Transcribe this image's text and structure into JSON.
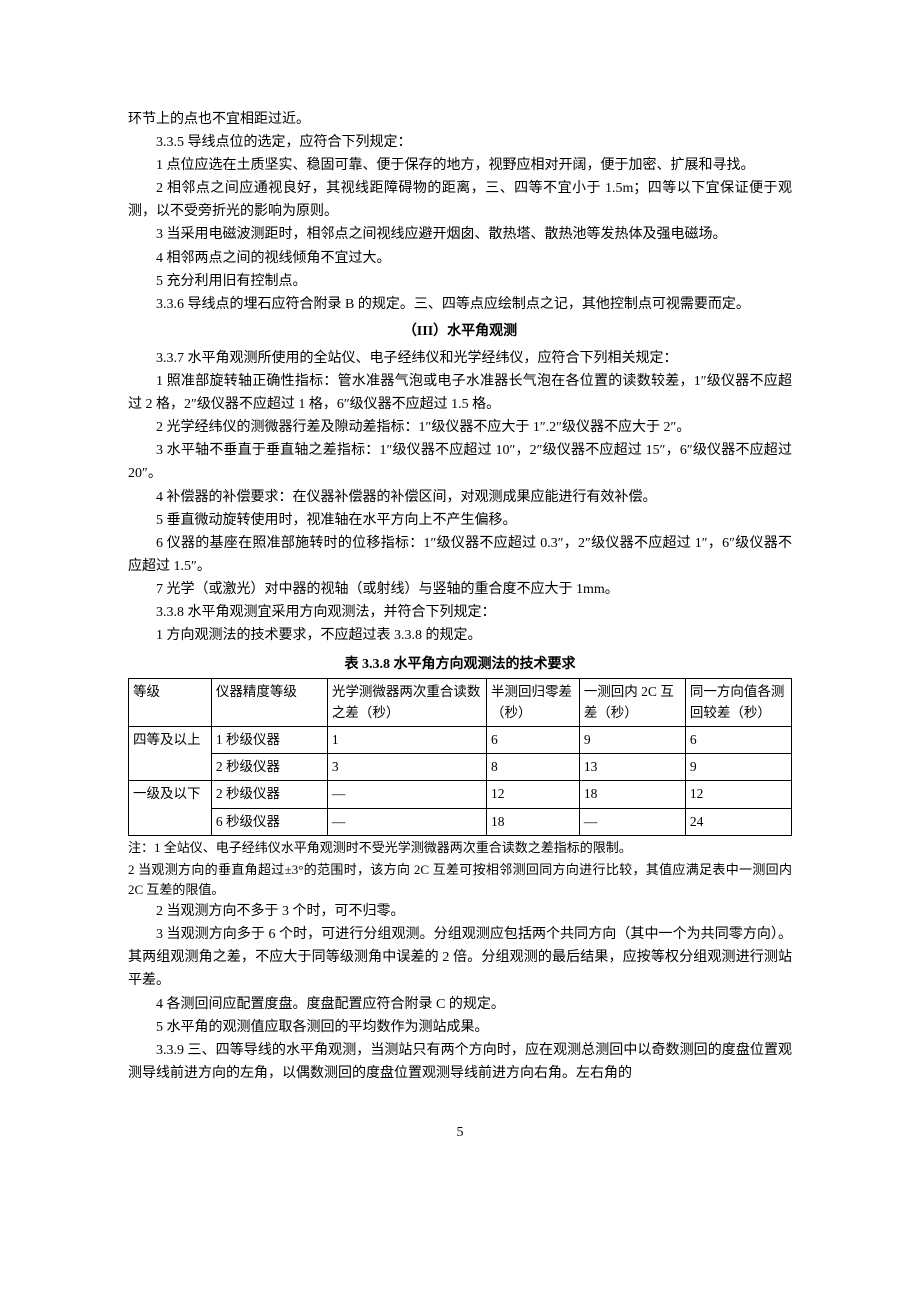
{
  "p0": "环节上的点也不宜相距过近。",
  "s335": "3.3.5  导线点位的选定，应符合下列规定：",
  "s335_1": "1  点位应选在土质坚实、稳固可靠、便于保存的地方，视野应相对开阔，便于加密、扩展和寻找。",
  "s335_2": "2  相邻点之间应通视良好，其视线距障碍物的距离，三、四等不宜小于 1.5m；四等以下宜保证便于观测，以不受旁折光的影响为原则。",
  "s335_3": "3  当采用电磁波测距时，相邻点之间视线应避开烟囱、散热塔、散热池等发热体及强电磁场。",
  "s335_4": "4  相邻两点之间的视线倾角不宜过大。",
  "s335_5": "5  充分利用旧有控制点。",
  "s336": "3.3.6  导线点的埋石应符合附录 B 的规定。三、四等点应绘制点之记，其他控制点可视需要而定。",
  "section_iii": "（III）水平角观测",
  "s337": "3.3.7  水平角观测所使用的全站仪、电子经纬仪和光学经纬仪，应符合下列相关规定：",
  "s337_1": "1  照准部旋转轴正确性指标：管水准器气泡或电子水准器长气泡在各位置的读数较差，1″级仪器不应超过 2 格，2″级仪器不应超过 1 格，6″级仪器不应超过 1.5 格。",
  "s337_2": "2  光学经纬仪的测微器行差及隙动差指标：1″级仪器不应大于 1″.2″级仪器不应大于 2″。",
  "s337_3": "3  水平轴不垂直于垂直轴之差指标：1″级仪器不应超过 10″，2″级仪器不应超过 15″，6″级仪器不应超过 20″。",
  "s337_4": "4  补偿器的补偿要求：在仪器补偿器的补偿区间，对观测成果应能进行有效补偿。",
  "s337_5": "5  垂直微动旋转使用时，视准轴在水平方向上不产生偏移。",
  "s337_6": "6  仪器的基座在照准部施转时的位移指标：1″级仪器不应超过 0.3″，2″级仪器不应超过 1″，6″级仪器不应超过 1.5″。",
  "s337_7": "7  光学（或激光）对中器的视轴（或射线）与竖轴的重合度不应大于 1mm。",
  "s338": "3.3.8  水平角观测宜采用方向观测法，并符合下列规定：",
  "s338_1": "1  方向观测法的技术要求，不应超过表 3.3.8 的规定。",
  "table_title": "表 3.3.8  水平角方向观测法的技术要求",
  "table": {
    "headers": [
      "等级",
      "仪器精度等级",
      "光学测微器两次重合读数之差（秒）",
      "半测回归零差（秒）",
      "一测回内 2C 互差（秒）",
      "同一方向值各测回较差（秒）"
    ],
    "rows": [
      [
        "四等及以上",
        "1 秒级仪器",
        "1",
        "6",
        "9",
        "6"
      ],
      [
        "",
        "2 秒级仪器",
        "3",
        "8",
        "13",
        "9"
      ],
      [
        "一级及以下",
        "2 秒级仪器",
        "—",
        "12",
        "18",
        "12"
      ],
      [
        "",
        "6 秒级仪器",
        "—",
        "18",
        "—",
        "24"
      ]
    ]
  },
  "note1": "注：1  全站仪、电子经纬仪水平角观测时不受光学测微器两次重合读数之差指标的限制。",
  "note2": "2  当观测方向的垂直角超过±3°的范围时，该方向 2C 互差可按相邻测回同方向进行比较，其值应满足表中一测回内 2C 互差的限值。",
  "s338_2": "2  当观测方向不多于 3 个时，可不归零。",
  "s338_3": "3  当观测方向多于 6 个时，可进行分组观测。分组观测应包括两个共同方向（其中一个为共同零方向）。其两组观测角之差，不应大于同等级测角中误差的 2 倍。分组观测的最后结果，应按等权分组观测进行测站平差。",
  "s338_4": "4  各测回间应配置度盘。度盘配置应符合附录 C 的规定。",
  "s338_5": "5  水平角的观测值应取各测回的平均数作为测站成果。",
  "s339": "3.3.9  三、四等导线的水平角观测，当测站只有两个方向时，应在观测总测回中以奇数测回的度盘位置观测导线前进方向的左角，以偶数测回的度盘位置观测导线前进方向右角。左右角的",
  "page_number": "5"
}
